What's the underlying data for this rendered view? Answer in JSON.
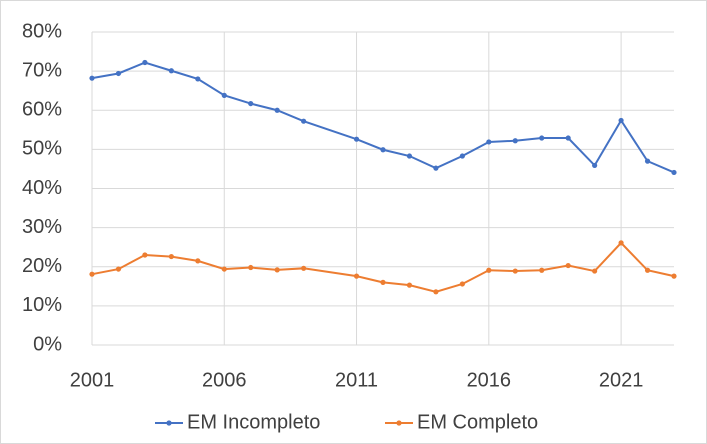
{
  "chart_data": {
    "type": "line",
    "x": [
      2001,
      2002,
      2003,
      2004,
      2005,
      2006,
      2007,
      2008,
      2009,
      2011,
      2012,
      2013,
      2014,
      2015,
      2016,
      2017,
      2018,
      2019,
      2020,
      2021,
      2022,
      2023
    ],
    "series": [
      {
        "name": "EM Incompleto",
        "color": "#4472c4",
        "values": [
          68.2,
          69.4,
          72.2,
          70.1,
          68.0,
          63.8,
          61.7,
          60.0,
          57.2,
          52.6,
          49.9,
          48.3,
          45.2,
          48.3,
          51.9,
          52.2,
          52.9,
          52.9,
          45.9,
          57.4,
          47.0,
          44.1
        ]
      },
      {
        "name": "EM Completo",
        "color": "#ed7d31",
        "values": [
          18.1,
          19.4,
          23.0,
          22.6,
          21.5,
          19.4,
          19.8,
          19.2,
          19.6,
          17.6,
          16.0,
          15.3,
          13.6,
          15.6,
          19.1,
          18.9,
          19.1,
          20.3,
          18.9,
          26.1,
          19.1,
          17.6
        ]
      }
    ],
    "xlim": [
      2001,
      2023
    ],
    "xticks": [
      2001,
      2006,
      2011,
      2016,
      2021
    ],
    "ylim": [
      0,
      80
    ],
    "yticks": [
      {
        "value": 0,
        "label": "0%"
      },
      {
        "value": 10,
        "label": "10%"
      },
      {
        "value": 20,
        "label": "20%"
      },
      {
        "value": 30,
        "label": "30%"
      },
      {
        "value": 40,
        "label": "40%"
      },
      {
        "value": 50,
        "label": "50%"
      },
      {
        "value": 60,
        "label": "60%"
      },
      {
        "value": 70,
        "label": "70%"
      },
      {
        "value": 80,
        "label": "80%"
      }
    ],
    "grid": true,
    "legend": "bottom"
  }
}
